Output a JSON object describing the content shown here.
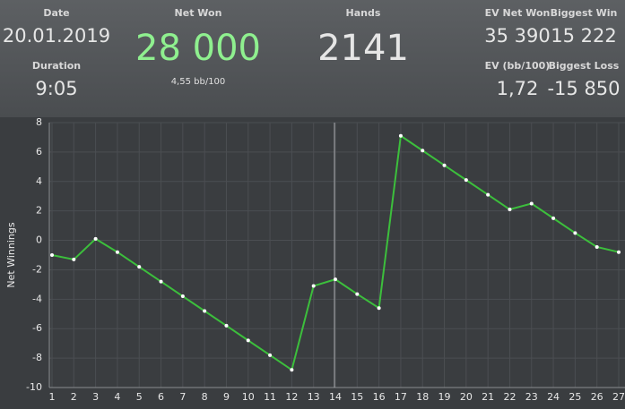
{
  "header": {
    "stats": [
      {
        "label": "Date",
        "value": "20.01.2019"
      },
      {
        "label": "Duration",
        "value": "9:05"
      },
      {
        "label": "Net Won",
        "value": "28 000",
        "sub": "4,55 bb/100"
      },
      {
        "label": "Hands",
        "value": "2141"
      },
      {
        "label": "EV Net Won",
        "value": "35 390"
      },
      {
        "label": "Biggest Win",
        "value": "15 222"
      },
      {
        "label": "EV (bb/100)",
        "value": "1,72"
      },
      {
        "label": "Biggest Loss",
        "value": "-15 850"
      }
    ]
  },
  "chart_data": {
    "type": "line",
    "y_label": "Net Winnings",
    "x": [
      1,
      2,
      3,
      4,
      5,
      6,
      7,
      8,
      9,
      10,
      11,
      12,
      13,
      14,
      15,
      16,
      17,
      18,
      19,
      20,
      21,
      22,
      23,
      24,
      25,
      26,
      27
    ],
    "values": [
      -1.0,
      -1.3,
      0.1,
      -0.8,
      -1.8,
      -2.8,
      -3.8,
      -4.8,
      -5.8,
      -6.8,
      -7.8,
      -8.8,
      -3.1,
      -2.65,
      -3.65,
      -4.6,
      7.1,
      6.1,
      5.1,
      4.1,
      3.1,
      2.1,
      2.5,
      1.5,
      0.5,
      -0.45,
      -0.8
    ],
    "color": "#3cbf3c",
    "xlim": [
      1,
      27
    ],
    "xticks": [
      1,
      2,
      3,
      4,
      5,
      6,
      7,
      8,
      9,
      10,
      11,
      12,
      13,
      14,
      15,
      16,
      17,
      18,
      19,
      20,
      21,
      22,
      23,
      24,
      25,
      26,
      27
    ],
    "ylim": [
      -10,
      8
    ],
    "yticks": [
      -10,
      -8,
      -6,
      -4,
      -2,
      0,
      2,
      4,
      6,
      8
    ],
    "grid": true
  }
}
